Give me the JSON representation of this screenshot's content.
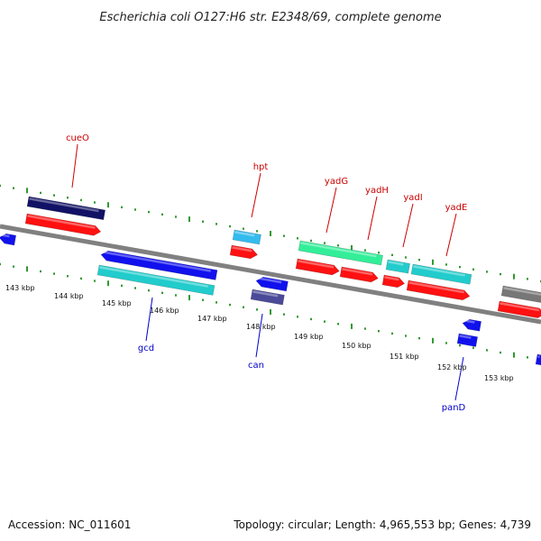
{
  "title": "Escherichia coli O127:H6 str. E2348/69, complete genome",
  "accession": "Accession: NC_011601",
  "summary": "Topology: circular; Length: 4,965,553 bp; Genes: 4,739",
  "colors": {
    "background": "#ffffff",
    "backbone": "#808080",
    "tick": "#339933",
    "plus_label": "#cc0000",
    "minus_label": "#0000cc",
    "red_feature": "#ff1111",
    "blue_feature": "#1111ee",
    "light_blue_feature": "#33bbee",
    "navy_feature": "#111166",
    "teal_feature": "#22cccc",
    "slate_feature": "#4a4a99",
    "green_feature": "#33ee99",
    "grey_feature": "#777777"
  },
  "scale_labels": [
    "143 kbp",
    "144 kbp",
    "145 kbp",
    "146 kbp",
    "147 kbp",
    "148 kbp",
    "149 kbp",
    "150 kbp",
    "151 kbp",
    "152 kbp",
    "153 kbp"
  ],
  "gene_labels": [
    {
      "text": "cueO",
      "strand": "plus"
    },
    {
      "text": "hpt",
      "strand": "plus"
    },
    {
      "text": "yadG",
      "strand": "plus"
    },
    {
      "text": "yadH",
      "strand": "plus"
    },
    {
      "text": "yadI",
      "strand": "plus"
    },
    {
      "text": "yadE",
      "strand": "plus"
    },
    {
      "text": "gcd",
      "strand": "minus"
    },
    {
      "text": "can",
      "strand": "minus"
    },
    {
      "text": "panD",
      "strand": "minus"
    }
  ]
}
